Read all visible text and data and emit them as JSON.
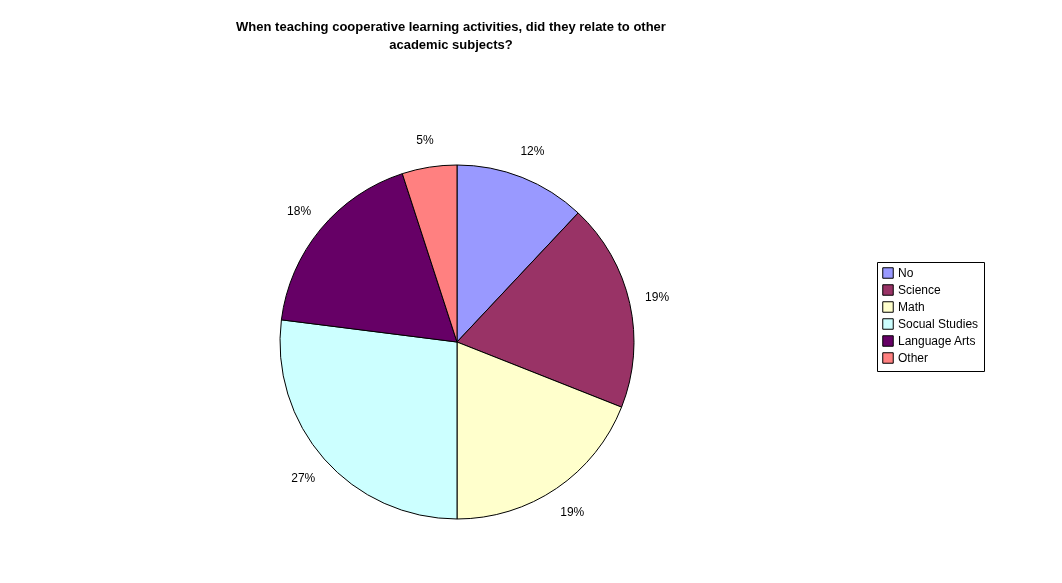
{
  "chart_data": {
    "type": "pie",
    "title": "When teaching cooperative learning activities, did they relate to other academic subjects?",
    "categories": [
      "No",
      "Science",
      "Math",
      "Socual Studies",
      "Language Arts",
      "Other"
    ],
    "values": [
      12,
      19,
      19,
      27,
      18,
      5
    ],
    "value_labels": [
      "12%",
      "19%",
      "19%",
      "27%",
      "18%",
      "5%"
    ],
    "colors": [
      "#9999ff",
      "#993366",
      "#ffffcc",
      "#ccffff",
      "#660066",
      "#ff8080"
    ],
    "legend": "right"
  }
}
